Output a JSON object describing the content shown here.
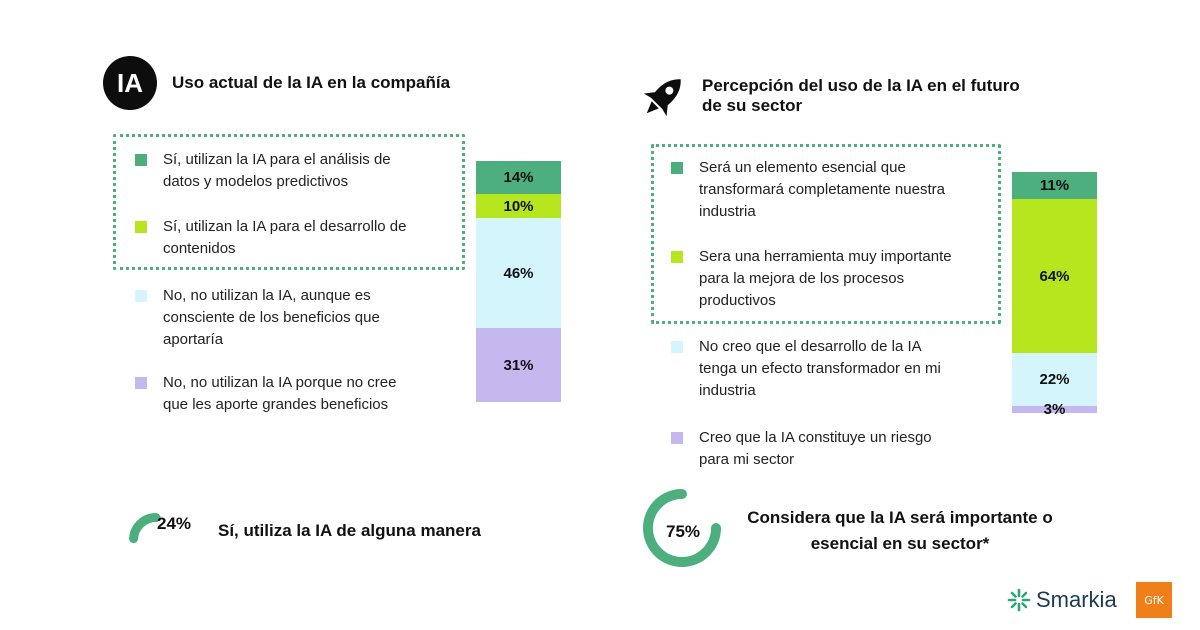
{
  "left": {
    "badge": "IA",
    "title": "Uso actual de la IA en la compañía",
    "summary_value": "24%",
    "summary_fraction": 0.24,
    "summary_text": "Sí, utiliza la IA de alguna manera"
  },
  "right": {
    "title_line1": "Percepción del uso de la IA en el futuro",
    "title_line2": "de su sector",
    "summary_value": "75%",
    "summary_fraction": 0.75,
    "summary_text_line1": "Considera que la IA será importante o",
    "summary_text_line2": "esencial en su sector*"
  },
  "logos": {
    "smarkia": "Smarkia",
    "gfk": "GfK"
  },
  "colors": {
    "green": "#4caf7d",
    "lime": "#b6e61e",
    "lightblue": "#d4f5fb",
    "lavender": "#c5b8ef",
    "gauge": "#4caf7d"
  },
  "chart_data": [
    {
      "type": "bar",
      "stacked": true,
      "title": "Uso actual de la IA en la compañía",
      "series": [
        {
          "name": "Sí, utilizan la IA para el análisis de datos y modelos predictivos",
          "value": 14,
          "label": "14%",
          "color": "#4caf7d"
        },
        {
          "name": "Sí, utilizan la IA para el desarrollo de contenidos",
          "value": 10,
          "label": "10%",
          "color": "#b6e61e"
        },
        {
          "name": "No, no utilizan la IA, aunque es consciente de los beneficios que aportaría",
          "value": 46,
          "label": "46%",
          "color": "#d4f5fb"
        },
        {
          "name": "No, no utilizan la IA porque no cree que les aporte grandes beneficios",
          "value": 31,
          "label": "31%",
          "color": "#c5b8ef"
        }
      ],
      "legend_lines": [
        [
          "Sí, utilizan la IA para el análisis de",
          "datos y modelos predictivos"
        ],
        [
          "Sí, utilizan la IA para el desarrollo de",
          "contenidos"
        ],
        [
          "No, no utilizan la IA, aunque es",
          "consciente de los beneficios que",
          "aportaría"
        ],
        [
          "No, no utilizan la IA porque no cree",
          "que les aporte grandes beneficios"
        ]
      ]
    },
    {
      "type": "bar",
      "stacked": true,
      "title": "Percepción del uso de la IA en el futuro de su sector",
      "series": [
        {
          "name": "Será un elemento esencial que transformará completamente nuestra industria",
          "value": 11,
          "label": "11%",
          "color": "#4caf7d"
        },
        {
          "name": "Sera una herramienta muy importante para la mejora de los procesos productivos",
          "value": 64,
          "label": "64%",
          "color": "#b6e61e"
        },
        {
          "name": "No creo que el desarrollo de la IA tenga un efecto transformador en mi industria",
          "value": 22,
          "label": "22%",
          "color": "#d4f5fb"
        },
        {
          "name": "Creo que la IA constituye un riesgo para mi sector",
          "value": 3,
          "label": "3%",
          "color": "#c5b8ef"
        }
      ],
      "legend_lines": [
        [
          "Será un elemento esencial que",
          "transformará completamente nuestra",
          "industria"
        ],
        [
          "Sera una herramienta muy importante",
          "para la mejora de los procesos",
          "productivos"
        ],
        [
          "No creo que el desarrollo de la IA",
          "tenga un efecto transformador en mi",
          "industria"
        ],
        [
          "Creo que la IA constituye un riesgo",
          "para mi sector"
        ]
      ]
    }
  ]
}
